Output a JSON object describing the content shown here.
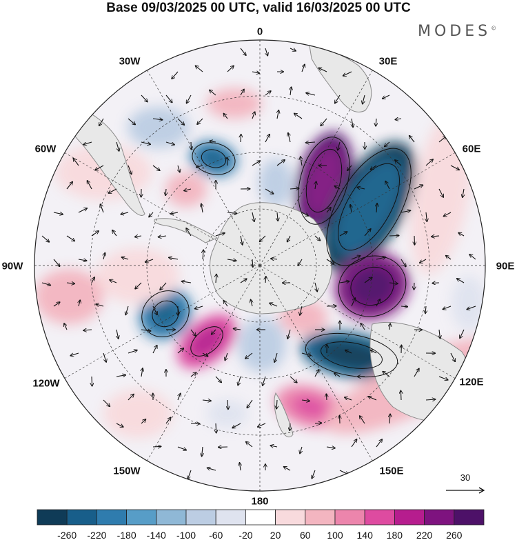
{
  "title": "Base 09/03/2025 00 UTC, valid 16/03/2025 00 UTC",
  "brand": "MODES",
  "brand_mark": "©",
  "map": {
    "projection": "south-polar-stereographic",
    "longitude_labels": [
      "0",
      "30E",
      "60E",
      "90E",
      "120E",
      "150E",
      "180",
      "150W",
      "120W",
      "90W",
      "60W",
      "30W"
    ],
    "reference_vector": "30"
  },
  "colorbar": {
    "ticks": [
      "-260",
      "-220",
      "-180",
      "-140",
      "-100",
      "-60",
      "-20",
      "20",
      "60",
      "100",
      "140",
      "180",
      "220",
      "260"
    ],
    "colors": [
      "#0f3b57",
      "#185e8a",
      "#2f7cae",
      "#579dc7",
      "#8fb8d6",
      "#bccde3",
      "#dfe3ef",
      "#ffffff",
      "#f8dadd",
      "#f3b5c0",
      "#ec85ac",
      "#de4ba0",
      "#b61d8e",
      "#7e137f",
      "#4d1168"
    ]
  },
  "colors": {
    "coast": "#8a8a8a",
    "land": "#ececec",
    "grid": "#333333"
  }
}
